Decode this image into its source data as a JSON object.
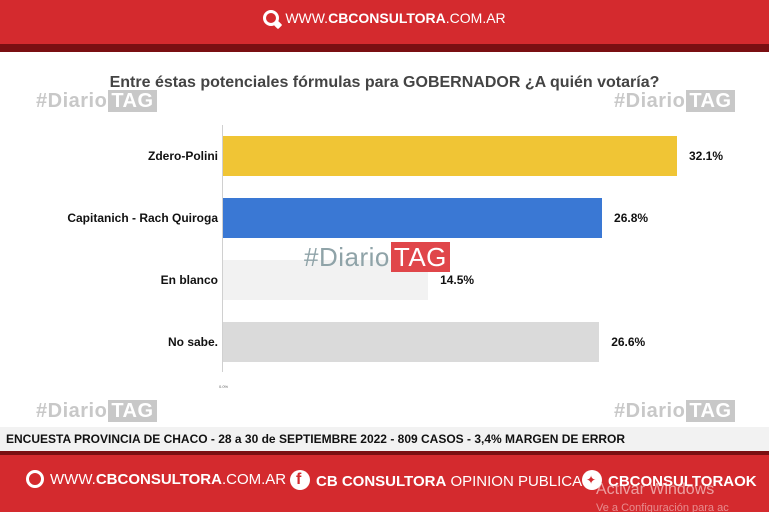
{
  "header": {
    "brand_www": "WWW.",
    "brand_name": "CBCONSULTORA",
    "brand_domain": ".COM.AR"
  },
  "watermark": {
    "prefix": "#Diario",
    "tag": "TAG"
  },
  "chart_data": {
    "type": "bar",
    "orientation": "horizontal",
    "title": "Entre éstas potenciales fórmulas para GOBERNADOR ¿A quién votaría?",
    "categories": [
      "Zdero-Polini",
      "Capitanich - Rach Quiroga",
      "En blanco",
      "No sabe."
    ],
    "values": [
      32.1,
      26.8,
      14.5,
      26.6
    ],
    "value_labels": [
      "32.1%",
      "26.8%",
      "14.5%",
      "26.6%"
    ],
    "colors": [
      "#f0c535",
      "#3a78d4",
      "#f2f2f2",
      "#dadada"
    ],
    "x_tick_label": "0.0%",
    "xlim": [
      0,
      35
    ],
    "grid": false
  },
  "footer_note": "ENCUESTA PROVINCIA DE CHACO - 28 a 30 de SEPTIEMBRE 2022 - 809 CASOS - 3,4% MARGEN DE ERROR",
  "bottom_bar": {
    "web_www": "WWW.",
    "web_name": "CBCONSULTORA",
    "web_domain": ".COM.AR",
    "fb_name": "CB CONSULTORA",
    "fb_suffix": " OPINION PUBLICA",
    "tw_handle": "CBCONSULTORAOK"
  },
  "os_overlay": {
    "line1": "Activar Windows",
    "line2": "Ve a Configuración para ac"
  },
  "colors": {
    "brand_red": "#d42a2e",
    "dark_red": "#7a0f12"
  }
}
